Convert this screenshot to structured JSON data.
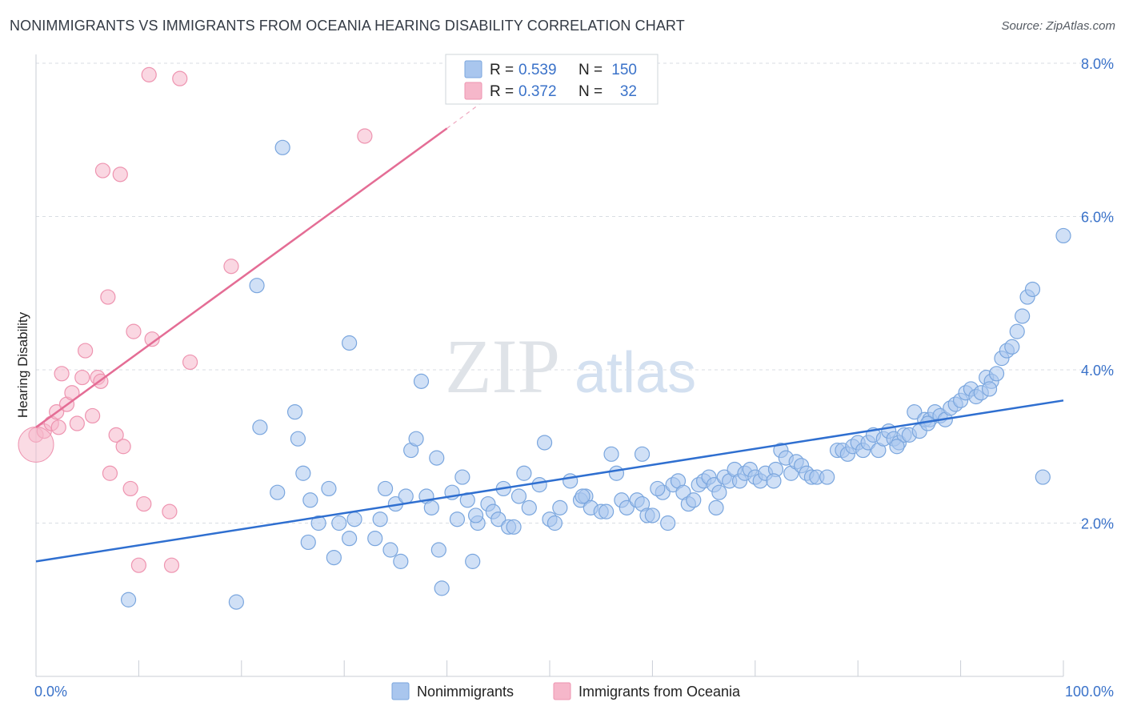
{
  "header": {
    "title": "NONIMMIGRANTS VS IMMIGRANTS FROM OCEANIA HEARING DISABILITY CORRELATION CHART",
    "source": "Source: ZipAtlas.com"
  },
  "watermark": {
    "zip": "ZIP",
    "atlas": "atlas"
  },
  "colors": {
    "blue_fill": "#a9c6ee",
    "blue_stroke": "#7aa6de",
    "blue_line": "#2f6fd0",
    "pink_fill": "#f6b7ca",
    "pink_stroke": "#ee94b0",
    "pink_line": "#e46d95",
    "tick_text": "#3a72c9",
    "grid": "#d9dde3"
  },
  "stats": {
    "blue": {
      "r_label": "R =",
      "r_value": "0.539",
      "n_label": "N =",
      "n_value": "150"
    },
    "pink": {
      "r_label": "R =",
      "r_value": "0.372",
      "n_label": "N =",
      "n_value": "32"
    }
  },
  "chart_data": {
    "type": "scatter",
    "xlabel": "",
    "ylabel": "Hearing Disability",
    "xlim": [
      0,
      100
    ],
    "ylim": [
      0,
      8.0
    ],
    "yticks": [
      2.0,
      4.0,
      6.0,
      8.0
    ],
    "ytick_labels": [
      "2.0%",
      "4.0%",
      "6.0%",
      "8.0%"
    ],
    "xtick_labels": [
      "0.0%",
      "100.0%"
    ],
    "grid": "horizontal dashed",
    "legend": [
      {
        "name": "Nonimmigrants",
        "color": "#a9c6ee"
      },
      {
        "name": "Immigrants from Oceania",
        "color": "#f6b7ca"
      }
    ],
    "series": [
      {
        "name": "Nonimmigrants",
        "trend": {
          "x": [
            0,
            100
          ],
          "y": [
            1.5,
            3.6
          ]
        },
        "points": [
          [
            9,
            1.0
          ],
          [
            19.5,
            0.97
          ],
          [
            21.5,
            5.1
          ],
          [
            24,
            6.9
          ],
          [
            30.5,
            4.35
          ],
          [
            37.5,
            3.85
          ],
          [
            21.8,
            3.25
          ],
          [
            25.2,
            3.45
          ],
          [
            25.5,
            3.1
          ],
          [
            26,
            2.65
          ],
          [
            26.5,
            1.75
          ],
          [
            26.7,
            2.3
          ],
          [
            27.5,
            2.0
          ],
          [
            28.5,
            2.45
          ],
          [
            29,
            1.55
          ],
          [
            29.5,
            2.0
          ],
          [
            30.5,
            1.8
          ],
          [
            31,
            2.05
          ],
          [
            33,
            1.8
          ],
          [
            33.5,
            2.05
          ],
          [
            34.5,
            1.65
          ],
          [
            35,
            2.25
          ],
          [
            35.5,
            1.5
          ],
          [
            36,
            2.35
          ],
          [
            36.5,
            2.95
          ],
          [
            37,
            3.1
          ],
          [
            38,
            2.35
          ],
          [
            38.5,
            2.2
          ],
          [
            39,
            2.85
          ],
          [
            39.2,
            1.65
          ],
          [
            39.5,
            1.15
          ],
          [
            40.5,
            2.4
          ],
          [
            41,
            2.05
          ],
          [
            41.5,
            2.6
          ],
          [
            42,
            2.3
          ],
          [
            42.5,
            1.5
          ],
          [
            43,
            2.0
          ],
          [
            44,
            2.25
          ],
          [
            44.5,
            2.15
          ],
          [
            45,
            2.05
          ],
          [
            46,
            1.95
          ],
          [
            46.5,
            1.95
          ],
          [
            47,
            2.35
          ],
          [
            47.5,
            2.65
          ],
          [
            48,
            2.2
          ],
          [
            49,
            2.5
          ],
          [
            49.5,
            3.05
          ],
          [
            50,
            2.05
          ],
          [
            50.5,
            2.0
          ],
          [
            51,
            2.2
          ],
          [
            52,
            2.55
          ],
          [
            53,
            2.3
          ],
          [
            53.5,
            2.35
          ],
          [
            54,
            2.2
          ],
          [
            55,
            2.15
          ],
          [
            55.5,
            2.15
          ],
          [
            56,
            2.9
          ],
          [
            56.5,
            2.65
          ],
          [
            57,
            2.3
          ],
          [
            57.5,
            2.2
          ],
          [
            58.5,
            2.3
          ],
          [
            59,
            2.25
          ],
          [
            59.5,
            2.1
          ],
          [
            60,
            2.1
          ],
          [
            61,
            2.4
          ],
          [
            61.5,
            2.0
          ],
          [
            62,
            2.5
          ],
          [
            62.5,
            2.55
          ],
          [
            63,
            2.4
          ],
          [
            63.5,
            2.25
          ],
          [
            64,
            2.3
          ],
          [
            64.5,
            2.5
          ],
          [
            65,
            2.55
          ],
          [
            65.5,
            2.6
          ],
          [
            66,
            2.5
          ],
          [
            66.5,
            2.4
          ],
          [
            67,
            2.6
          ],
          [
            67.5,
            2.55
          ],
          [
            68,
            2.7
          ],
          [
            68.5,
            2.55
          ],
          [
            69,
            2.65
          ],
          [
            69.5,
            2.7
          ],
          [
            70,
            2.6
          ],
          [
            70.5,
            2.55
          ],
          [
            71,
            2.65
          ],
          [
            72,
            2.7
          ],
          [
            72.5,
            2.95
          ],
          [
            73,
            2.85
          ],
          [
            73.5,
            2.65
          ],
          [
            74,
            2.8
          ],
          [
            74.5,
            2.75
          ],
          [
            75,
            2.65
          ],
          [
            75.5,
            2.6
          ],
          [
            76,
            2.6
          ],
          [
            77,
            2.6
          ],
          [
            78,
            2.95
          ],
          [
            78.5,
            2.95
          ],
          [
            79,
            2.9
          ],
          [
            79.5,
            3.0
          ],
          [
            80,
            3.05
          ],
          [
            80.5,
            2.95
          ],
          [
            81,
            3.05
          ],
          [
            81.5,
            3.15
          ],
          [
            82,
            2.95
          ],
          [
            82.5,
            3.1
          ],
          [
            83,
            3.2
          ],
          [
            83.5,
            3.1
          ],
          [
            84,
            3.05
          ],
          [
            84.5,
            3.15
          ],
          [
            85,
            3.15
          ],
          [
            85.5,
            3.45
          ],
          [
            86,
            3.2
          ],
          [
            86.5,
            3.35
          ],
          [
            87,
            3.35
          ],
          [
            87.5,
            3.45
          ],
          [
            88,
            3.4
          ],
          [
            88.5,
            3.35
          ],
          [
            89,
            3.5
          ],
          [
            89.5,
            3.55
          ],
          [
            90,
            3.6
          ],
          [
            90.5,
            3.7
          ],
          [
            91,
            3.75
          ],
          [
            91.5,
            3.65
          ],
          [
            92,
            3.7
          ],
          [
            92.5,
            3.9
          ],
          [
            93,
            3.85
          ],
          [
            93.5,
            3.95
          ],
          [
            94,
            4.15
          ],
          [
            94.5,
            4.25
          ],
          [
            95,
            4.3
          ],
          [
            95.5,
            4.5
          ],
          [
            96,
            4.7
          ],
          [
            96.5,
            4.95
          ],
          [
            97,
            5.05
          ],
          [
            100,
            5.75
          ],
          [
            59,
            2.9
          ],
          [
            23.5,
            2.4
          ],
          [
            34,
            2.45
          ],
          [
            45.5,
            2.45
          ],
          [
            60.5,
            2.45
          ],
          [
            83.8,
            3.0
          ],
          [
            71.8,
            2.55
          ],
          [
            86.8,
            3.3
          ],
          [
            92.8,
            3.75
          ],
          [
            98,
            2.6
          ],
          [
            66.2,
            2.2
          ],
          [
            42.8,
            2.1
          ],
          [
            53.2,
            2.35
          ]
        ]
      },
      {
        "name": "Immigrants from Oceania",
        "trend": {
          "x": [
            0,
            40
          ],
          "y": [
            3.25,
            7.15
          ]
        },
        "trend_extension": {
          "x": [
            40,
            46
          ],
          "y": [
            7.15,
            7.75
          ]
        },
        "points": [
          [
            0,
            3.15
          ],
          [
            0.8,
            3.2
          ],
          [
            1.5,
            3.3
          ],
          [
            2,
            3.45
          ],
          [
            2.5,
            3.95
          ],
          [
            3,
            3.55
          ],
          [
            3.5,
            3.7
          ],
          [
            4,
            3.3
          ],
          [
            4.5,
            3.9
          ],
          [
            4.8,
            4.25
          ],
          [
            5.5,
            3.4
          ],
          [
            6,
            3.9
          ],
          [
            6.3,
            3.85
          ],
          [
            6.5,
            6.6
          ],
          [
            7,
            4.95
          ],
          [
            7.2,
            2.65
          ],
          [
            7.8,
            3.15
          ],
          [
            8.2,
            6.55
          ],
          [
            8.5,
            3.0
          ],
          [
            9.2,
            2.45
          ],
          [
            9.5,
            4.5
          ],
          [
            10,
            1.45
          ],
          [
            10.5,
            2.25
          ],
          [
            11,
            7.85
          ],
          [
            11.3,
            4.4
          ],
          [
            13,
            2.15
          ],
          [
            13.2,
            1.45
          ],
          [
            14,
            7.8
          ],
          [
            15,
            4.1
          ],
          [
            19,
            5.35
          ],
          [
            32,
            7.05
          ],
          [
            2.2,
            3.25
          ]
        ]
      }
    ]
  }
}
